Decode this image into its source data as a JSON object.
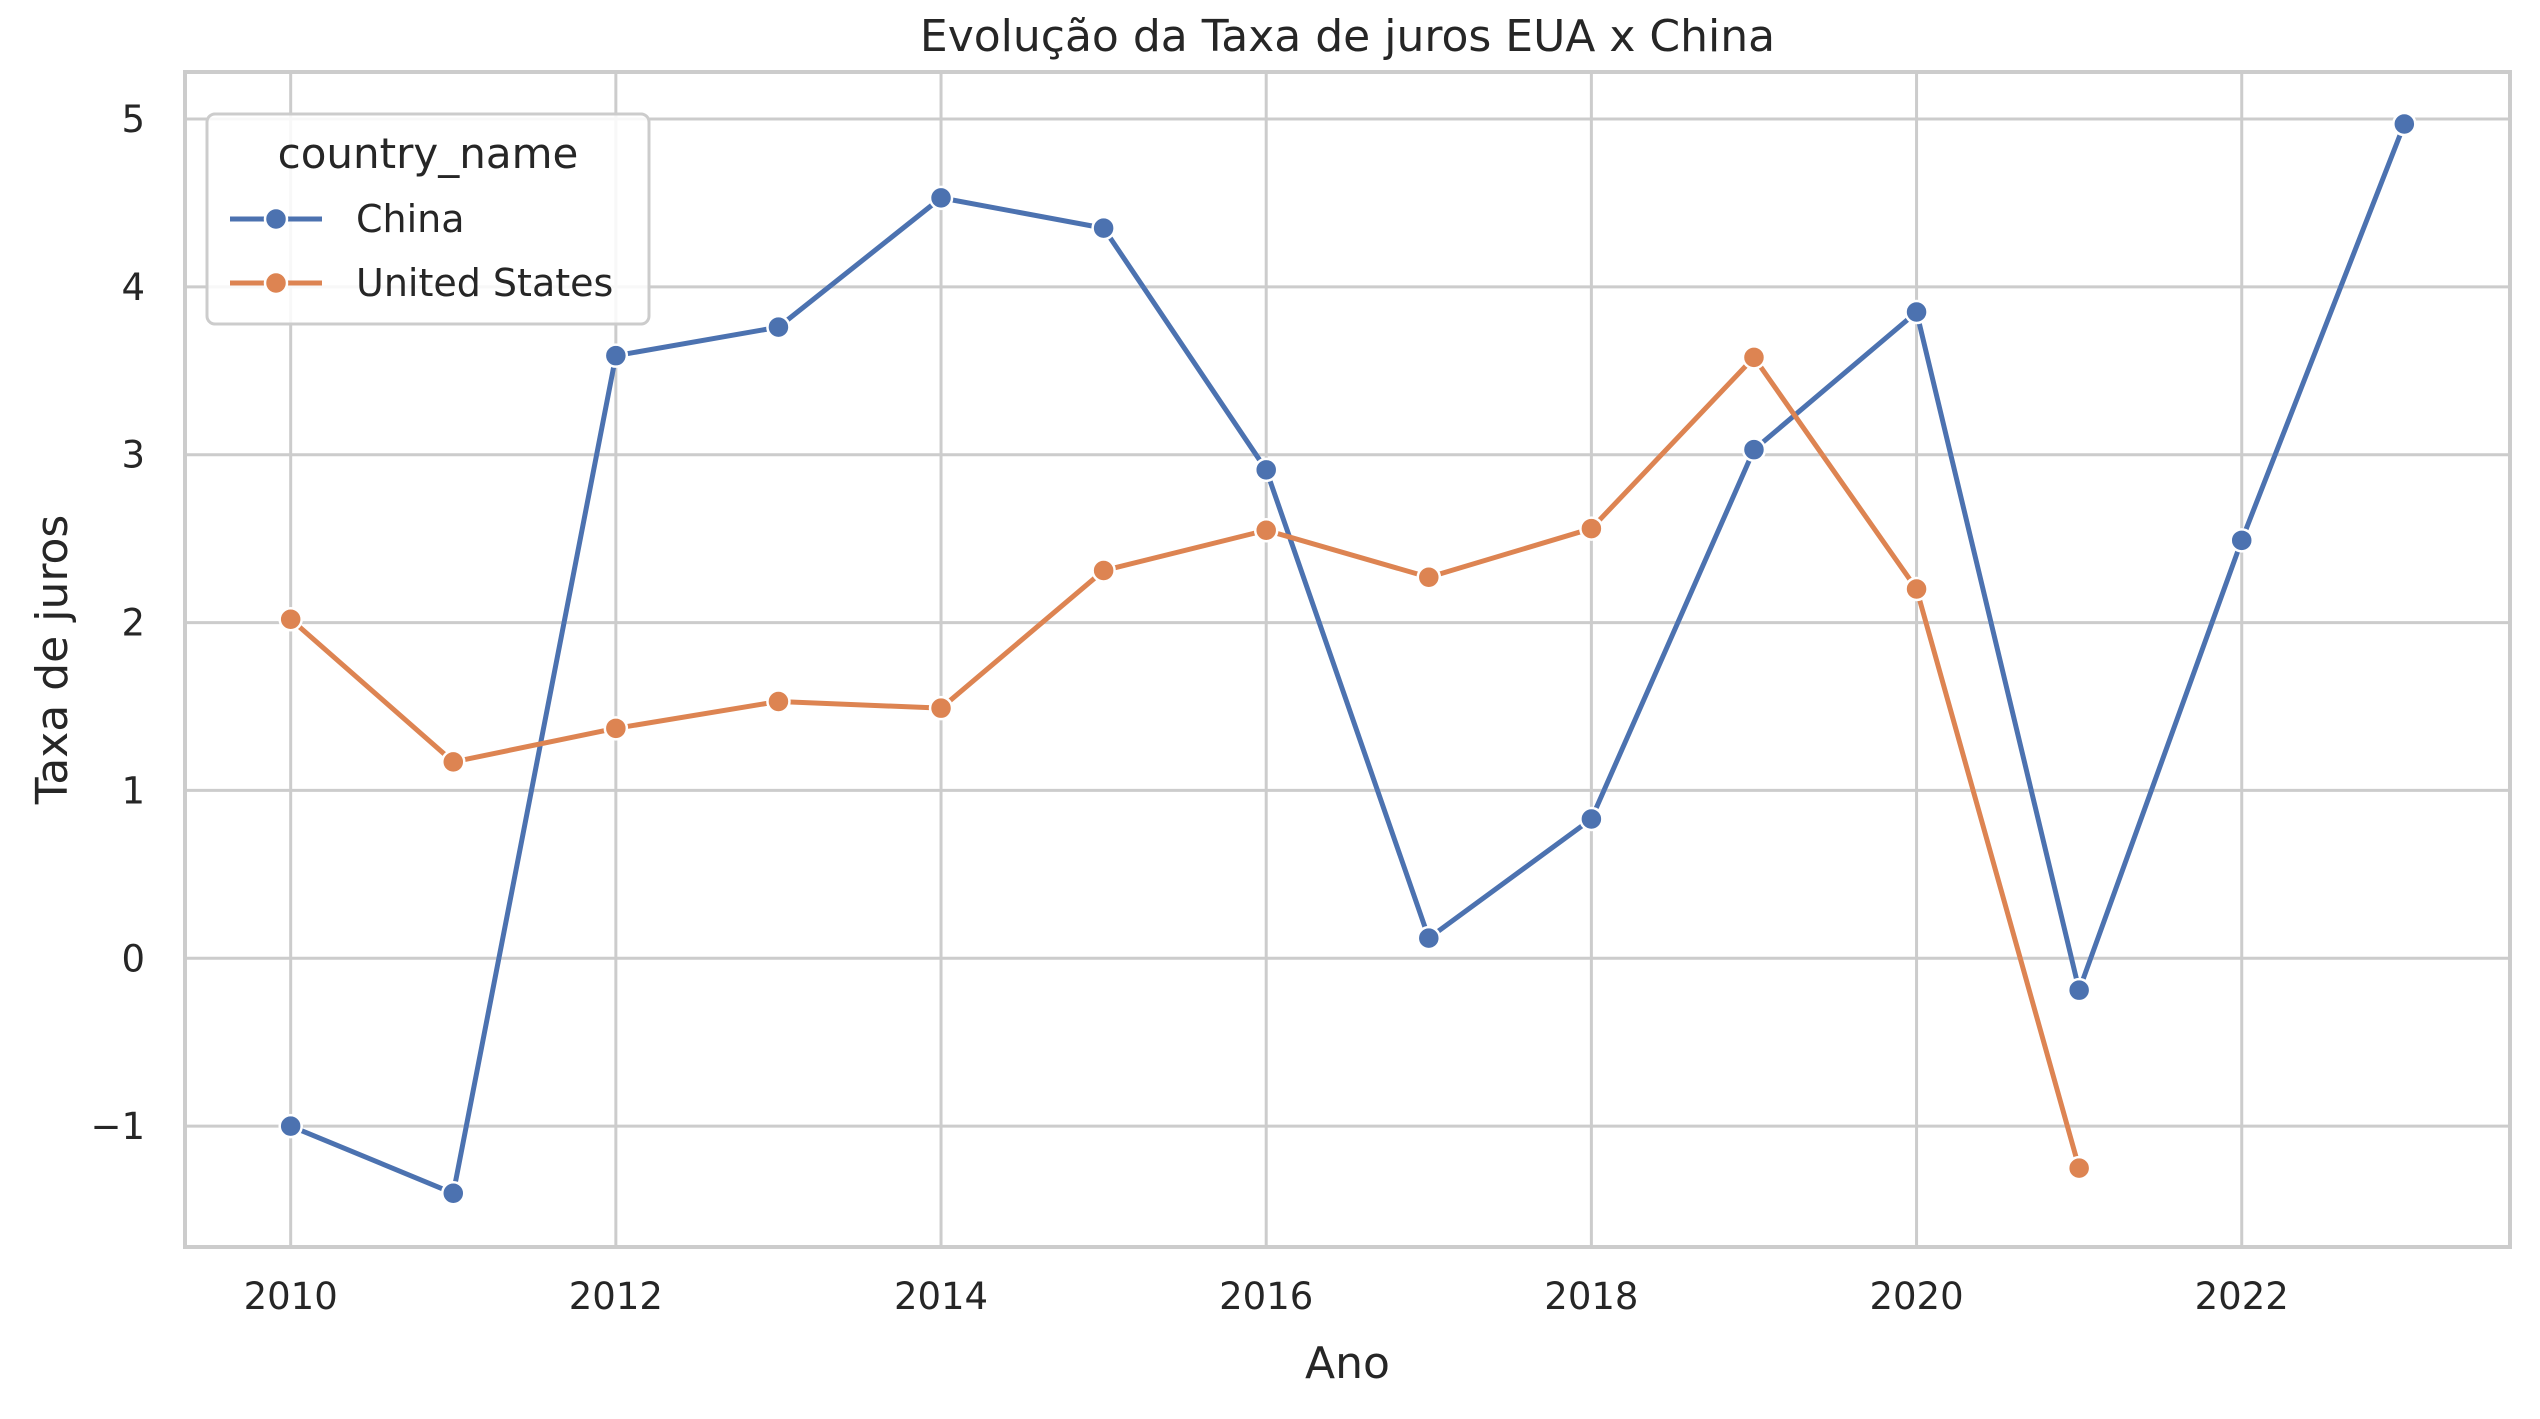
{
  "chart_data": {
    "type": "line",
    "title": "Evolução da Taxa de juros EUA x China",
    "xlabel": "Ano",
    "ylabel": "Taxa de juros",
    "xlim": [
      2009.35,
      2023.65
    ],
    "ylim": [
      -1.72,
      5.28
    ],
    "x_ticks": [
      2010,
      2012,
      2014,
      2016,
      2018,
      2020,
      2022
    ],
    "y_ticks": [
      -1,
      0,
      1,
      2,
      3,
      4,
      5
    ],
    "y_tick_labels": [
      "−1",
      "0",
      "1",
      "2",
      "3",
      "4",
      "5"
    ],
    "grid": true,
    "legend": {
      "title": "country_name",
      "placement": "top-left"
    },
    "series": [
      {
        "name": "China",
        "color": "#4c72b0",
        "x": [
          2010,
          2011,
          2012,
          2013,
          2014,
          2015,
          2016,
          2017,
          2018,
          2019,
          2020,
          2021,
          2022,
          2023
        ],
        "y": [
          -1.0,
          -1.4,
          3.59,
          3.76,
          4.53,
          4.35,
          2.91,
          0.12,
          0.83,
          3.03,
          3.85,
          -0.19,
          2.49,
          4.97
        ]
      },
      {
        "name": "United States",
        "color": "#dd8452",
        "x": [
          2010,
          2011,
          2012,
          2013,
          2014,
          2015,
          2016,
          2017,
          2018,
          2019,
          2020,
          2021
        ],
        "y": [
          2.02,
          1.17,
          1.37,
          1.53,
          1.49,
          2.31,
          2.55,
          2.27,
          2.56,
          3.58,
          2.2,
          -1.25
        ]
      }
    ]
  }
}
